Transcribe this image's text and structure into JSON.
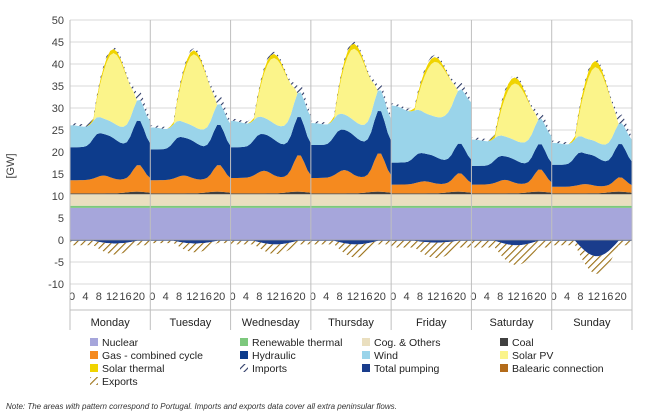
{
  "chart_data": {
    "type": "area",
    "ylabel": "[GW]",
    "ylim": [
      -10,
      50
    ],
    "yticks": [
      -10,
      -5,
      0,
      5,
      10,
      15,
      20,
      25,
      30,
      35,
      40,
      45,
      50
    ],
    "hour_ticks": [
      "0",
      "4",
      "8",
      "12",
      "16",
      "20"
    ],
    "days": [
      "Monday",
      "Tuesday",
      "Wednesday",
      "Thursday",
      "Friday",
      "Saturday",
      "Sunday"
    ],
    "note": "Note: The areas with pattern correspond to Portugal. Imports and exports data cover all extra peninsular flows.",
    "series": [
      {
        "name": "Nuclear",
        "color": "#a6a6db",
        "hatch": false
      },
      {
        "name": "Renewable thermal",
        "color": "#7dc87d",
        "hatch": false
      },
      {
        "name": "Cog. & Others",
        "color": "#eadfbf",
        "hatch": false
      },
      {
        "name": "Coal",
        "color": "#404040",
        "hatch": false
      },
      {
        "name": "Gas - combined cycle",
        "color": "#f58a1f",
        "hatch": false
      },
      {
        "name": "Hydraulic",
        "color": "#0d3c8c",
        "hatch": false
      },
      {
        "name": "Wind",
        "color": "#9ad4ea",
        "hatch": false
      },
      {
        "name": "Solar PV",
        "color": "#fbf48a",
        "hatch": false
      },
      {
        "name": "Solar thermal",
        "color": "#f0d400",
        "hatch": false
      },
      {
        "name": "Imports",
        "color": "#404a6a",
        "hatch": true
      },
      {
        "name": "Total pumping",
        "color": "#1a3d8c",
        "hatch": false
      },
      {
        "name": "Balearic connection",
        "color": "#b36b1a",
        "hatch": false
      },
      {
        "name": "Exports",
        "color": "#a3791f",
        "hatch": true
      }
    ],
    "day_profiles": [
      {
        "nuclear": 7.3,
        "renew": 0.5,
        "cog": 2.6,
        "coal_min": 0.2,
        "coal_max": 0.6,
        "gas_min": 3.0,
        "gas_max": 6.5,
        "hydro_min": 4.5,
        "hydro_max": 10.5,
        "wind_min": 3.0,
        "wind_max": 5.0,
        "solar": 16.0,
        "solar_th_max": 1.0,
        "imports_min": 0.5,
        "imports_max": 2.0,
        "pumping": 0.6,
        "exports_min": 1.0,
        "exports_max": 2.5
      },
      {
        "nuclear": 7.3,
        "renew": 0.5,
        "cog": 2.6,
        "coal_min": 0.2,
        "coal_max": 0.6,
        "gas_min": 3.0,
        "gas_max": 6.5,
        "hydro_min": 4.5,
        "hydro_max": 9.5,
        "wind_min": 3.0,
        "wind_max": 5.0,
        "solar": 16.5,
        "solar_th_max": 1.0,
        "imports_min": 0.5,
        "imports_max": 2.0,
        "pumping": 0.6,
        "exports_min": 0.5,
        "exports_max": 2.0
      },
      {
        "nuclear": 7.3,
        "renew": 0.5,
        "cog": 2.6,
        "coal_min": 0.2,
        "coal_max": 0.6,
        "gas_min": 3.5,
        "gas_max": 9.0,
        "hydro_min": 5.0,
        "hydro_max": 9.0,
        "wind_min": 3.0,
        "wind_max": 6.0,
        "solar": 15.0,
        "solar_th_max": 1.0,
        "imports_min": 0.5,
        "imports_max": 2.0,
        "pumping": 0.8,
        "exports_min": 0.8,
        "exports_max": 2.2
      },
      {
        "nuclear": 7.3,
        "renew": 0.5,
        "cog": 2.6,
        "coal_min": 0.2,
        "coal_max": 0.6,
        "gas_min": 3.5,
        "gas_max": 9.5,
        "hydro_min": 5.0,
        "hydro_max": 10.0,
        "wind_min": 3.0,
        "wind_max": 5.0,
        "solar": 16.5,
        "solar_th_max": 1.2,
        "imports_min": 0.5,
        "imports_max": 1.5,
        "pumping": 0.8,
        "exports_min": 0.8,
        "exports_max": 3.0
      },
      {
        "nuclear": 7.3,
        "renew": 0.5,
        "cog": 2.6,
        "coal_min": 0.2,
        "coal_max": 0.6,
        "gas_min": 2.0,
        "gas_max": 4.5,
        "hydro_min": 3.0,
        "hydro_max": 7.0,
        "wind_min": 8.0,
        "wind_max": 13.0,
        "solar": 12.5,
        "solar_th_max": 1.2,
        "imports_min": 0.5,
        "imports_max": 1.5,
        "pumping": 0.4,
        "exports_min": 1.5,
        "exports_max": 3.5
      },
      {
        "nuclear": 7.3,
        "renew": 0.5,
        "cog": 2.6,
        "coal_min": 0.2,
        "coal_max": 0.6,
        "gas_min": 2.0,
        "gas_max": 5.5,
        "hydro_min": 2.5,
        "hydro_max": 6.0,
        "wind_min": 4.0,
        "wind_max": 6.0,
        "solar": 13.0,
        "solar_th_max": 1.5,
        "imports_min": 0.5,
        "imports_max": 1.5,
        "pumping": 1.0,
        "exports_min": 1.5,
        "exports_max": 4.5
      },
      {
        "nuclear": 7.3,
        "renew": 0.5,
        "cog": 2.6,
        "coal_min": 0.2,
        "coal_max": 0.6,
        "gas_min": 1.5,
        "gas_max": 3.5,
        "hydro_min": 2.0,
        "hydro_max": 8.0,
        "wind_min": 3.0,
        "wind_max": 5.0,
        "solar": 17.0,
        "solar_th_max": 1.5,
        "imports_min": 0.5,
        "imports_max": 2.0,
        "pumping": 3.5,
        "exports_min": 1.0,
        "exports_max": 4.0
      }
    ]
  }
}
